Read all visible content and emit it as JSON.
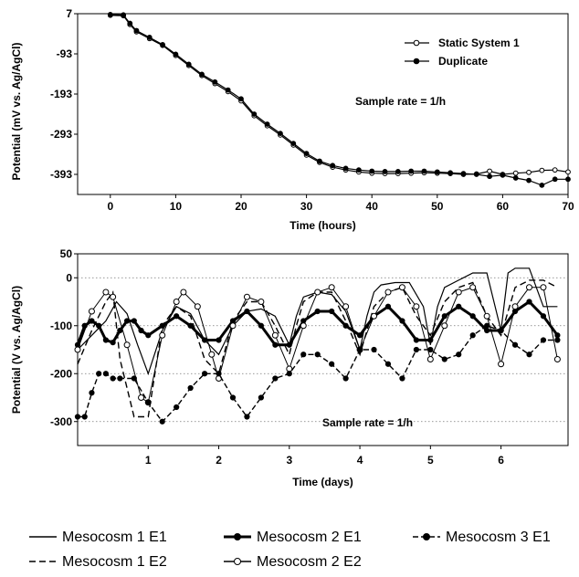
{
  "chart_data": [
    {
      "type": "line",
      "xlabel": "Time (hours)",
      "ylabel": "Potential (mV vs. Ag/AgCl)",
      "xlim": [
        -5,
        70
      ],
      "ylim": [
        -443,
        7
      ],
      "xticks": [
        0,
        10,
        20,
        30,
        40,
        50,
        60,
        70
      ],
      "yticks": [
        7,
        -93,
        -193,
        -293,
        -393
      ],
      "grid": false,
      "legend_placement": "top-right",
      "annotation": "Sample rate = 1/h",
      "series": [
        {
          "name": "Static System 1",
          "marker": "open-circle",
          "x": [
            0,
            2,
            3,
            4,
            6,
            8,
            10,
            12,
            14,
            16,
            18,
            20,
            22,
            24,
            26,
            28,
            30,
            32,
            34,
            36,
            38,
            40,
            42,
            44,
            46,
            48,
            50,
            52,
            54,
            56,
            58,
            60,
            62,
            64,
            66,
            68,
            70
          ],
          "y": [
            3,
            2,
            -20,
            -38,
            -55,
            -72,
            -97,
            -122,
            -147,
            -167,
            -187,
            -210,
            -247,
            -272,
            -295,
            -320,
            -345,
            -363,
            -375,
            -382,
            -387,
            -390,
            -391,
            -391,
            -390,
            -389,
            -390,
            -391,
            -393,
            -392,
            -385,
            -393,
            -390,
            -388,
            -383,
            -382,
            -387
          ]
        },
        {
          "name": "Duplicate",
          "marker": "filled-circle",
          "x": [
            0,
            2,
            3,
            4,
            6,
            8,
            10,
            12,
            14,
            16,
            18,
            20,
            22,
            24,
            26,
            28,
            30,
            32,
            34,
            36,
            38,
            40,
            42,
            44,
            46,
            48,
            50,
            52,
            54,
            56,
            58,
            60,
            62,
            64,
            66,
            68,
            70
          ],
          "y": [
            5,
            4,
            -17,
            -35,
            -52,
            -70,
            -94,
            -119,
            -144,
            -163,
            -183,
            -205,
            -243,
            -268,
            -291,
            -316,
            -341,
            -360,
            -371,
            -378,
            -382,
            -385,
            -386,
            -386,
            -385,
            -385,
            -387,
            -389,
            -391,
            -393,
            -398,
            -395,
            -402,
            -408,
            -420,
            -405,
            -405
          ]
        }
      ]
    },
    {
      "type": "line",
      "xlabel": "Time (days)",
      "ylabel": "Potential (V vs. Ag/AgCl)",
      "xlim": [
        0,
        6.95
      ],
      "ylim": [
        -350,
        50
      ],
      "xticks": [
        1,
        2,
        3,
        4,
        5,
        6
      ],
      "yticks": [
        50,
        0,
        -100,
        -200,
        -300
      ],
      "grid": "dotted horizontal",
      "annotation": "Sample rate = 1/h",
      "series": [
        {
          "name": "Mesocosm 1 E1",
          "style": "solid",
          "x": [
            0,
            0.2,
            0.4,
            0.55,
            0.7,
            0.85,
            1.0,
            1.2,
            1.4,
            1.6,
            1.8,
            2.0,
            2.2,
            2.4,
            2.6,
            2.8,
            3.0,
            3.1,
            3.2,
            3.4,
            3.6,
            3.8,
            4.0,
            4.1,
            4.2,
            4.3,
            4.5,
            4.7,
            4.9,
            5.0,
            5.1,
            5.2,
            5.4,
            5.6,
            5.8,
            6.0,
            6.1,
            6.2,
            6.4,
            6.6,
            6.8
          ],
          "y": [
            -150,
            -120,
            -90,
            -50,
            -75,
            -140,
            -200,
            -110,
            -60,
            -75,
            -130,
            -160,
            -100,
            -70,
            -65,
            -80,
            -140,
            -80,
            -40,
            -30,
            -35,
            -70,
            -150,
            -80,
            -30,
            -15,
            -10,
            -10,
            -60,
            -140,
            -60,
            -20,
            -5,
            10,
            10,
            -110,
            10,
            20,
            20,
            -60,
            -60
          ]
        },
        {
          "name": "Mesocosm 1 E2",
          "style": "dashed",
          "x": [
            0,
            0.2,
            0.4,
            0.5,
            0.6,
            0.8,
            1.0,
            1.2,
            1.4,
            1.6,
            1.8,
            2.0,
            2.2,
            2.4,
            2.6,
            2.8,
            3.0,
            3.1,
            3.2,
            3.4,
            3.6,
            3.8,
            4.0,
            4.2,
            4.4,
            4.6,
            4.8,
            5.0,
            5.2,
            5.4,
            5.6,
            5.8,
            6.0,
            6.2,
            6.4,
            6.6,
            6.8
          ],
          "y": [
            -180,
            -110,
            -50,
            -30,
            -170,
            -290,
            -290,
            -100,
            -60,
            -80,
            -170,
            -200,
            -90,
            -50,
            -50,
            -100,
            -160,
            -100,
            -50,
            -30,
            -30,
            -90,
            -160,
            -60,
            -30,
            -20,
            -80,
            -120,
            -50,
            -20,
            -10,
            -80,
            -120,
            -20,
            -5,
            -5,
            -20
          ]
        },
        {
          "name": "Mesocosm 2 E1",
          "style": "thick-filled",
          "x": [
            0,
            0.1,
            0.2,
            0.3,
            0.4,
            0.5,
            0.6,
            0.7,
            0.8,
            0.9,
            1.0,
            1.2,
            1.4,
            1.6,
            1.8,
            2.0,
            2.2,
            2.4,
            2.6,
            2.8,
            3.0,
            3.2,
            3.4,
            3.6,
            3.8,
            4.0,
            4.2,
            4.4,
            4.6,
            4.8,
            5.0,
            5.2,
            5.4,
            5.6,
            5.8,
            6.0,
            6.2,
            6.4,
            6.6,
            6.8
          ],
          "y": [
            -140,
            -100,
            -90,
            -100,
            -130,
            -135,
            -110,
            -90,
            -90,
            -110,
            -120,
            -100,
            -80,
            -100,
            -130,
            -130,
            -90,
            -70,
            -100,
            -140,
            -140,
            -90,
            -70,
            -70,
            -100,
            -120,
            -80,
            -60,
            -90,
            -130,
            -130,
            -80,
            -60,
            -80,
            -110,
            -110,
            -70,
            -50,
            -80,
            -120
          ]
        },
        {
          "name": "Mesocosm 2 E2",
          "style": "open-circle",
          "x": [
            0,
            0.2,
            0.4,
            0.5,
            0.7,
            0.9,
            1.0,
            1.2,
            1.4,
            1.5,
            1.7,
            1.9,
            2.0,
            2.2,
            2.4,
            2.6,
            2.8,
            3.0,
            3.2,
            3.4,
            3.6,
            3.8,
            4.0,
            4.2,
            4.4,
            4.6,
            4.8,
            5.0,
            5.2,
            5.4,
            5.6,
            5.8,
            6.0,
            6.2,
            6.4,
            6.6,
            6.8
          ],
          "y": [
            -150,
            -70,
            -30,
            -40,
            -140,
            -250,
            -260,
            -120,
            -50,
            -30,
            -60,
            -160,
            -210,
            -100,
            -40,
            -50,
            -120,
            -190,
            -100,
            -30,
            -20,
            -60,
            -150,
            -80,
            -30,
            -20,
            -60,
            -170,
            -100,
            -30,
            -20,
            -80,
            -180,
            -60,
            -20,
            -20,
            -170
          ]
        },
        {
          "name": "Mesocosm 3 E1",
          "style": "dash-dot-filled",
          "x": [
            0,
            0.1,
            0.2,
            0.3,
            0.4,
            0.5,
            0.6,
            0.8,
            1.0,
            1.2,
            1.4,
            1.6,
            1.8,
            2.0,
            2.2,
            2.4,
            2.6,
            2.8,
            3.0,
            3.2,
            3.4,
            3.6,
            3.8,
            4.0,
            4.2,
            4.4,
            4.6,
            4.8,
            5.0,
            5.2,
            5.4,
            5.6,
            5.8,
            6.0,
            6.2,
            6.4,
            6.6,
            6.8
          ],
          "y": [
            -290,
            -290,
            -240,
            -200,
            -200,
            -210,
            -210,
            -210,
            -260,
            -300,
            -270,
            -230,
            -200,
            -200,
            -250,
            -290,
            -250,
            -210,
            -200,
            -160,
            -160,
            -180,
            -210,
            -150,
            -150,
            -180,
            -210,
            -150,
            -150,
            -170,
            -160,
            -120,
            -100,
            -110,
            -140,
            -160,
            -130,
            -130
          ]
        }
      ]
    }
  ]
}
